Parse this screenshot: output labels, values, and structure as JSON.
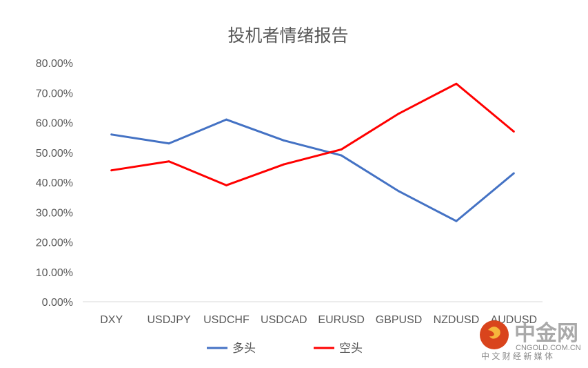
{
  "chart_data": {
    "type": "line",
    "title": "投机者情绪报告",
    "categories": [
      "DXY",
      "USDJPY",
      "USDCHF",
      "USDCAD",
      "EURUSD",
      "GBPUSD",
      "NZDUSD",
      "AUDUSD"
    ],
    "series": [
      {
        "name": "多头",
        "color": "#4472C4",
        "values": [
          56,
          53,
          61,
          54,
          49,
          37,
          27,
          43
        ]
      },
      {
        "name": "空头",
        "color": "#FF0000",
        "values": [
          44,
          47,
          39,
          46,
          51,
          63,
          73,
          57
        ]
      }
    ],
    "yticks": [
      "0.00%",
      "10.00%",
      "20.00%",
      "30.00%",
      "40.00%",
      "50.00%",
      "60.00%",
      "70.00%",
      "80.00%"
    ],
    "ylim": [
      0,
      80
    ],
    "xlabel": "",
    "ylabel": "",
    "grid": false,
    "legend": "bottom"
  },
  "watermark": {
    "brand": "中金网",
    "domain": "CNGOLD.COM.CN",
    "tagline": "中 文 财 经 新 媒 体"
  }
}
